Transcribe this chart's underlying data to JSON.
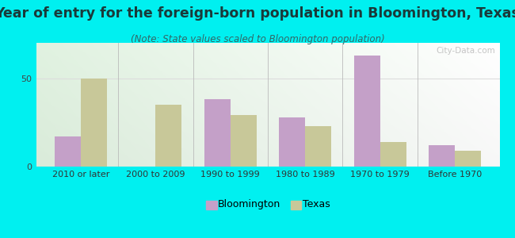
{
  "title": "Year of entry for the foreign-born population in Bloomington, Texas",
  "subtitle": "(Note: State values scaled to Bloomington population)",
  "categories": [
    "2010 or later",
    "2000 to 2009",
    "1990 to 1999",
    "1980 to 1989",
    "1970 to 1979",
    "Before 1970"
  ],
  "bloomington": [
    17,
    0,
    38,
    28,
    63,
    12
  ],
  "texas": [
    50,
    35,
    29,
    23,
    14,
    9
  ],
  "bloomington_color": "#c4a0c8",
  "texas_color": "#c8c899",
  "background_outer": "#00f0f0",
  "ylim": [
    0,
    70
  ],
  "yticks": [
    0,
    50
  ],
  "bar_width": 0.35,
  "title_fontsize": 12.5,
  "subtitle_fontsize": 8.5,
  "tick_fontsize": 8,
  "legend_fontsize": 9,
  "watermark_text": "City-Data.com"
}
